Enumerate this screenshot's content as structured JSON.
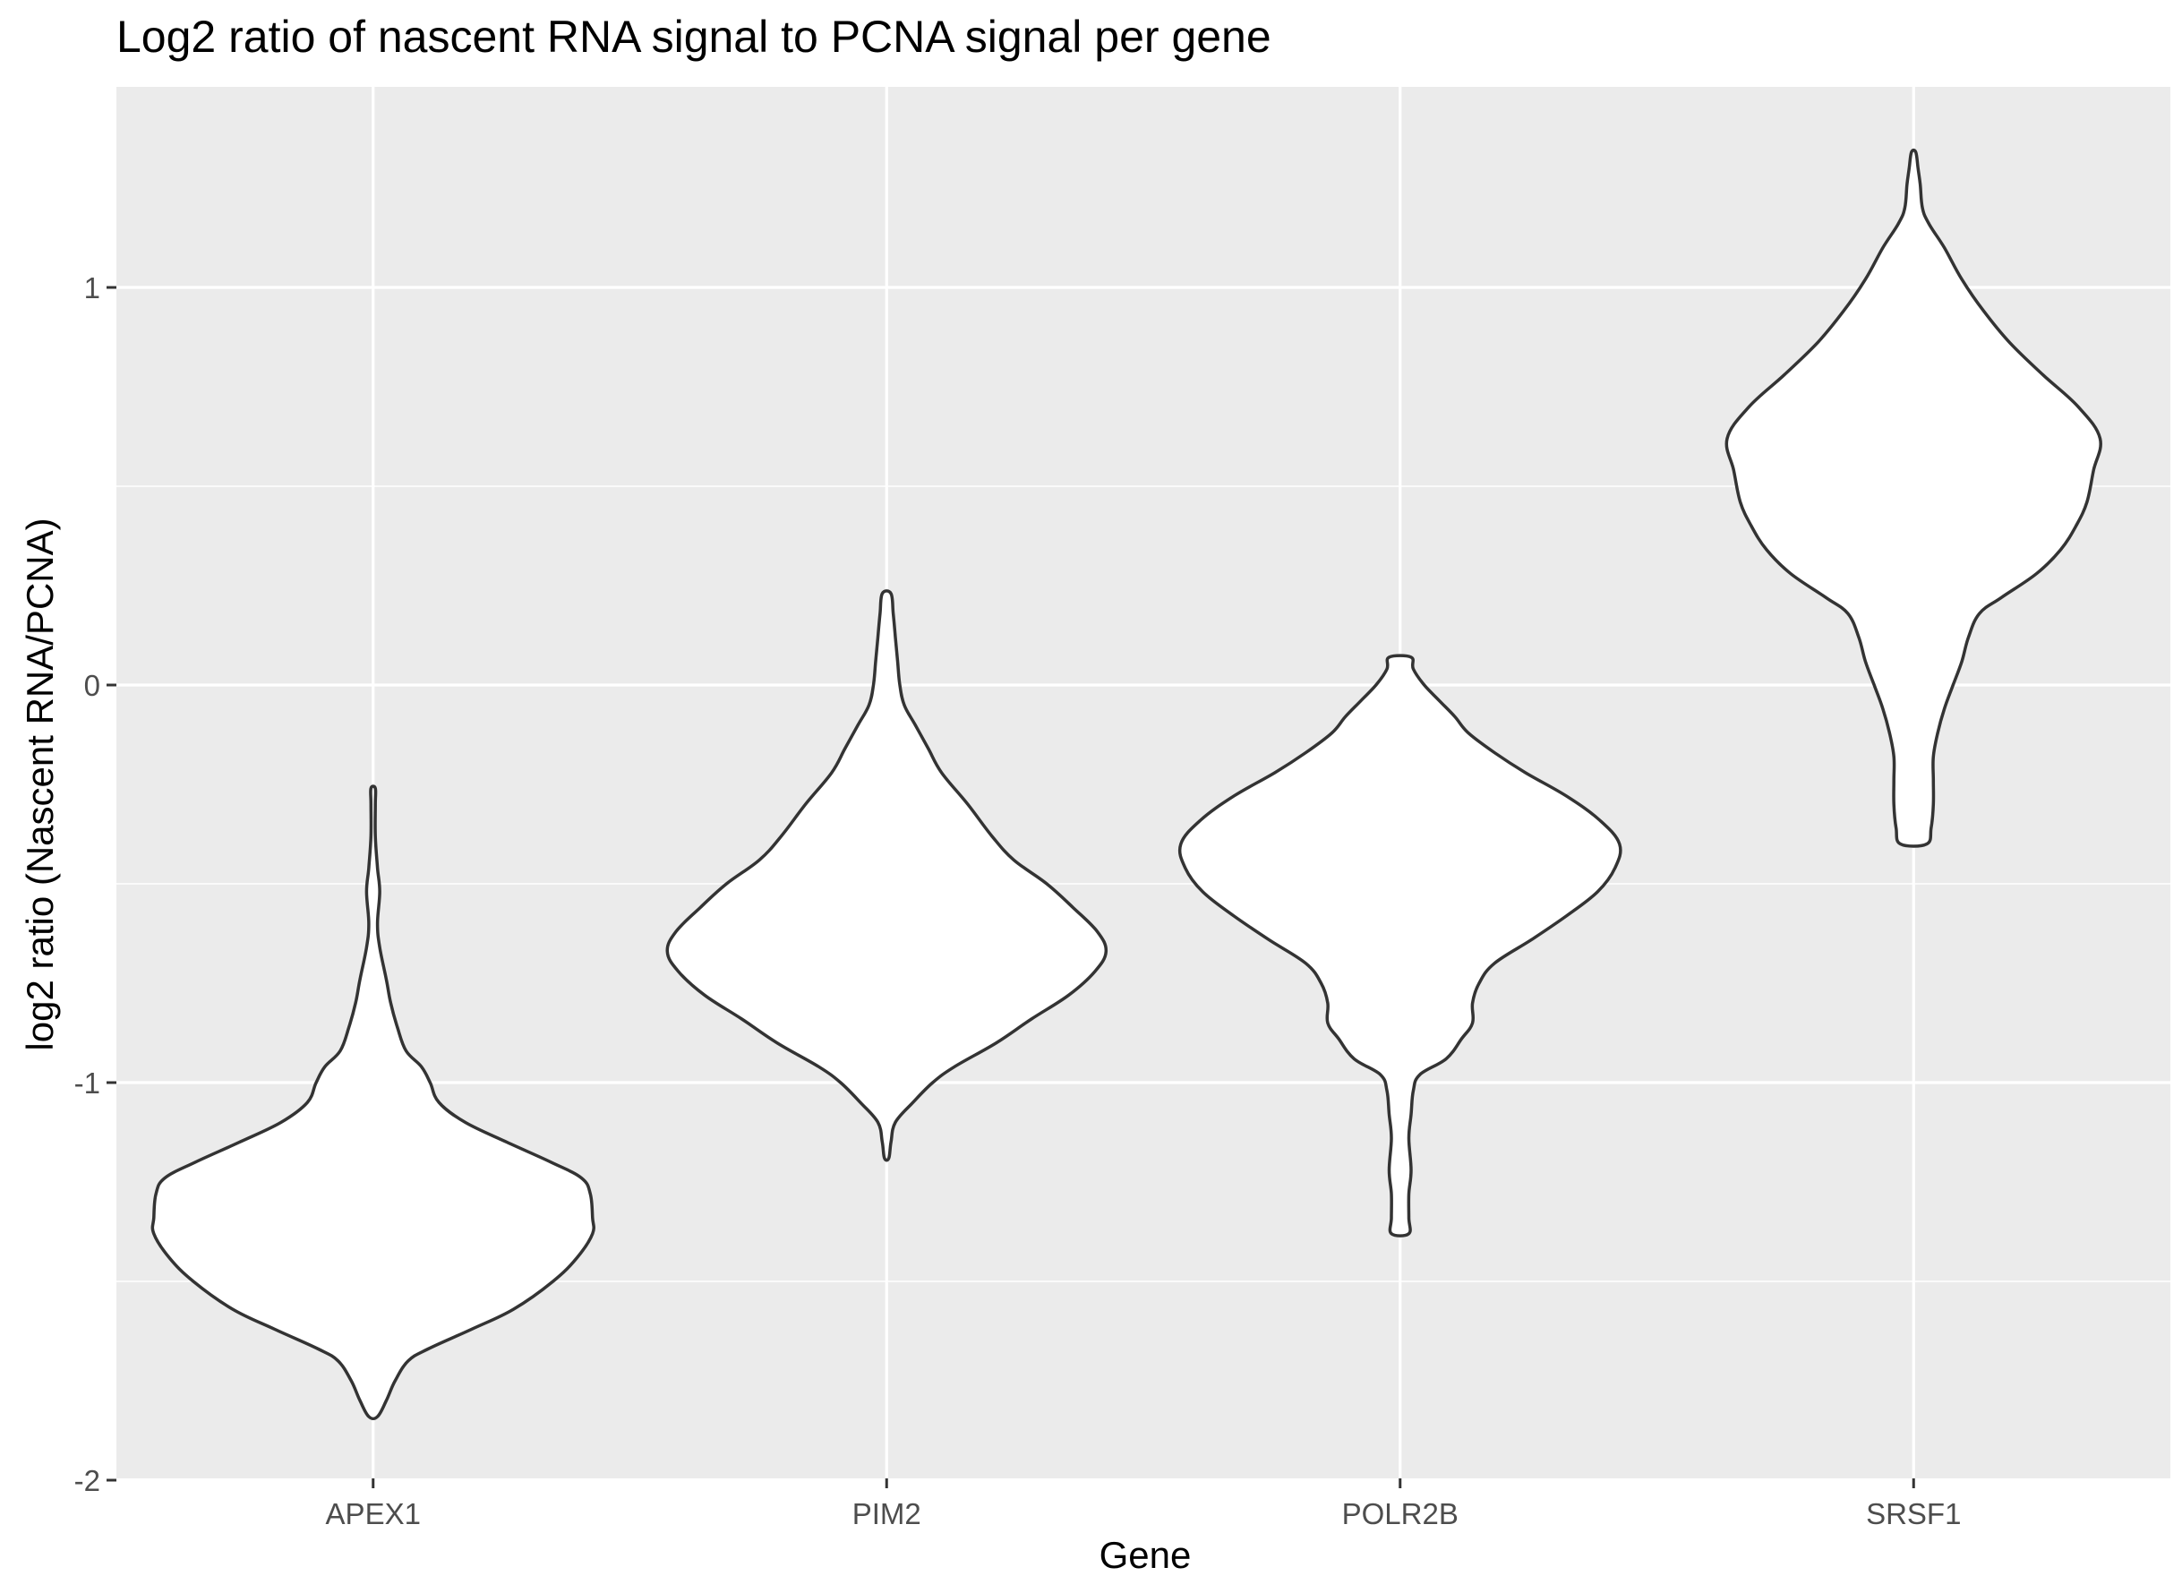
{
  "chart_data": {
    "type": "violin",
    "title": "Log2 ratio of nascent RNA signal to PCNA signal per gene",
    "xlabel": "Gene",
    "ylabel": "log2 ratio (Nascent RNA/PCNA)",
    "categories": [
      "APEX1",
      "PIM2",
      "POLR2B",
      "SRSF1"
    ],
    "ylim": [
      -2.0,
      1.5
    ],
    "yticks": [
      -2,
      -1,
      0,
      1
    ],
    "ytick_labels": [
      "-2",
      "-1",
      "0",
      "1"
    ],
    "y_minor_gridlines": [
      -1.5,
      -0.5,
      0.5
    ],
    "grid": true,
    "panel_background": "#ebebeb",
    "gridline_color": "#ffffff",
    "violin_fill": "#ffffff",
    "violin_outline": "#333333",
    "series": [
      {
        "category": "APEX1",
        "y_min": -1.84,
        "y_max": -0.26,
        "width_profile": [
          [
            -1.84,
            0.02
          ],
          [
            -1.8,
            0.06
          ],
          [
            -1.75,
            0.1
          ],
          [
            -1.7,
            0.16
          ],
          [
            -1.67,
            0.25
          ],
          [
            -1.62,
            0.45
          ],
          [
            -1.57,
            0.64
          ],
          [
            -1.5,
            0.82
          ],
          [
            -1.44,
            0.93
          ],
          [
            -1.38,
            1.0
          ],
          [
            -1.34,
            1.0
          ],
          [
            -1.28,
            0.99
          ],
          [
            -1.24,
            0.95
          ],
          [
            -1.2,
            0.81
          ],
          [
            -1.15,
            0.61
          ],
          [
            -1.1,
            0.42
          ],
          [
            -1.05,
            0.3
          ],
          [
            -1.0,
            0.26
          ],
          [
            -0.96,
            0.22
          ],
          [
            -0.92,
            0.15
          ],
          [
            -0.86,
            0.11
          ],
          [
            -0.8,
            0.08
          ],
          [
            -0.74,
            0.06
          ],
          [
            -0.66,
            0.03
          ],
          [
            -0.6,
            0.02
          ],
          [
            -0.52,
            0.03
          ],
          [
            -0.46,
            0.02
          ],
          [
            -0.38,
            0.01
          ],
          [
            -0.3,
            0.01
          ],
          [
            -0.26,
            0.01
          ]
        ]
      },
      {
        "category": "PIM2",
        "y_min": -1.19,
        "y_max": 0.23,
        "width_profile": [
          [
            -1.19,
            0.01
          ],
          [
            -1.15,
            0.02
          ],
          [
            -1.1,
            0.04
          ],
          [
            -1.05,
            0.12
          ],
          [
            -1.0,
            0.21
          ],
          [
            -0.96,
            0.31
          ],
          [
            -0.9,
            0.5
          ],
          [
            -0.84,
            0.66
          ],
          [
            -0.78,
            0.83
          ],
          [
            -0.72,
            0.95
          ],
          [
            -0.67,
            1.0
          ],
          [
            -0.62,
            0.96
          ],
          [
            -0.56,
            0.85
          ],
          [
            -0.5,
            0.73
          ],
          [
            -0.44,
            0.58
          ],
          [
            -0.38,
            0.48
          ],
          [
            -0.3,
            0.37
          ],
          [
            -0.22,
            0.25
          ],
          [
            -0.16,
            0.19
          ],
          [
            -0.1,
            0.13
          ],
          [
            -0.05,
            0.08
          ],
          [
            0.0,
            0.06
          ],
          [
            0.06,
            0.05
          ],
          [
            0.12,
            0.04
          ],
          [
            0.18,
            0.03
          ],
          [
            0.23,
            0.02
          ]
        ]
      },
      {
        "category": "POLR2B",
        "y_min": -1.38,
        "y_max": 0.07,
        "width_profile": [
          [
            -1.38,
            0.04
          ],
          [
            -1.34,
            0.04
          ],
          [
            -1.28,
            0.04
          ],
          [
            -1.22,
            0.05
          ],
          [
            -1.14,
            0.04
          ],
          [
            -1.08,
            0.05
          ],
          [
            -1.02,
            0.06
          ],
          [
            -0.98,
            0.09
          ],
          [
            -0.94,
            0.21
          ],
          [
            -0.89,
            0.28
          ],
          [
            -0.85,
            0.33
          ],
          [
            -0.8,
            0.33
          ],
          [
            -0.75,
            0.36
          ],
          [
            -0.7,
            0.43
          ],
          [
            -0.64,
            0.6
          ],
          [
            -0.58,
            0.76
          ],
          [
            -0.52,
            0.9
          ],
          [
            -0.46,
            0.98
          ],
          [
            -0.4,
            1.0
          ],
          [
            -0.34,
            0.91
          ],
          [
            -0.28,
            0.76
          ],
          [
            -0.22,
            0.57
          ],
          [
            -0.17,
            0.43
          ],
          [
            -0.12,
            0.31
          ],
          [
            -0.08,
            0.25
          ],
          [
            -0.04,
            0.18
          ],
          [
            0.0,
            0.11
          ],
          [
            0.04,
            0.06
          ],
          [
            0.07,
            0.05
          ]
        ]
      },
      {
        "category": "SRSF1",
        "y_min": -0.4,
        "y_max": 1.34,
        "width_profile": [
          [
            -0.4,
            0.06
          ],
          [
            -0.36,
            0.08
          ],
          [
            -0.3,
            0.09
          ],
          [
            -0.24,
            0.09
          ],
          [
            -0.18,
            0.09
          ],
          [
            -0.12,
            0.11
          ],
          [
            -0.06,
            0.14
          ],
          [
            0.0,
            0.18
          ],
          [
            0.06,
            0.22
          ],
          [
            0.12,
            0.25
          ],
          [
            0.18,
            0.3
          ],
          [
            0.22,
            0.4
          ],
          [
            0.28,
            0.56
          ],
          [
            0.34,
            0.67
          ],
          [
            0.4,
            0.74
          ],
          [
            0.46,
            0.79
          ],
          [
            0.54,
            0.82
          ],
          [
            0.62,
            0.85
          ],
          [
            0.7,
            0.75
          ],
          [
            0.78,
            0.59
          ],
          [
            0.86,
            0.44
          ],
          [
            0.94,
            0.32
          ],
          [
            1.02,
            0.22
          ],
          [
            1.1,
            0.14
          ],
          [
            1.16,
            0.07
          ],
          [
            1.2,
            0.04
          ],
          [
            1.26,
            0.03
          ],
          [
            1.3,
            0.02
          ],
          [
            1.34,
            0.01
          ]
        ]
      }
    ]
  }
}
